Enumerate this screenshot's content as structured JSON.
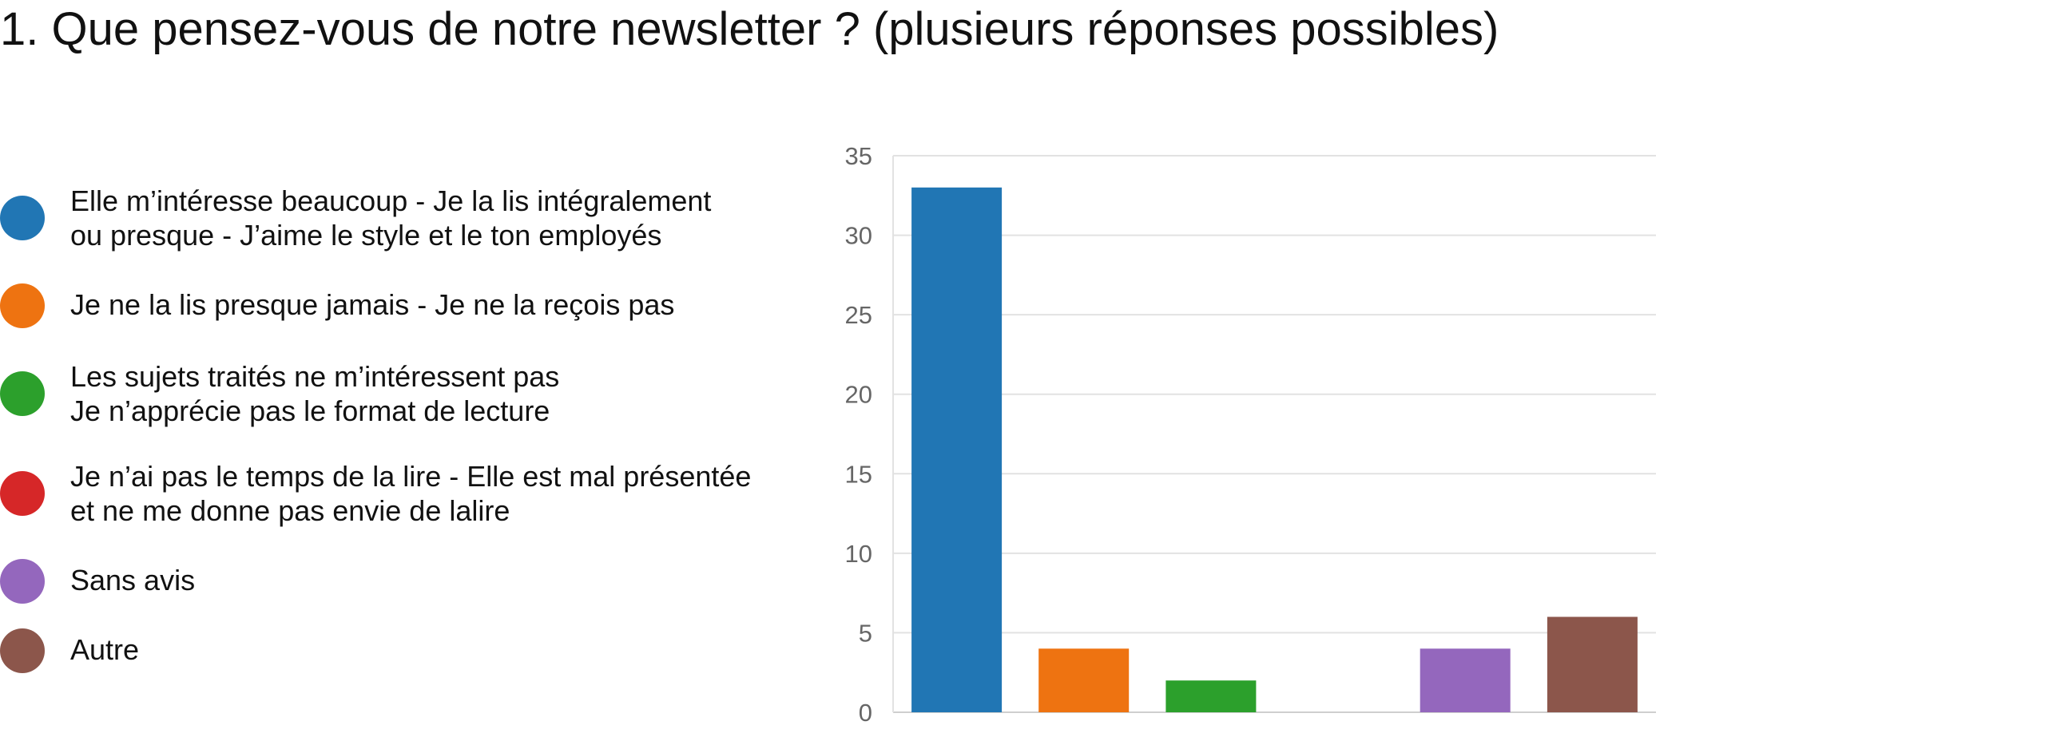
{
  "title": "1. Que pensez-vous de notre newsletter ? (plusieurs réponses possibles)",
  "legend": [
    {
      "label": "Elle m’intéresse beaucoup - Je la lis intégralement\nou presque - J’aime le style et le ton employés",
      "color": "#2176b4"
    },
    {
      "label": "Je ne la lis presque jamais - Je ne la reçois pas",
      "color": "#ee7311"
    },
    {
      "label": "Les sujets traités ne m’intéressent pas\nJe n’apprécie pas le format de lecture",
      "color": "#2ca02c"
    },
    {
      "label": "Je n’ai pas le temps de la lire - Elle est mal présentée\net ne me donne pas envie de lalire",
      "color": "#d62728"
    },
    {
      "label": "Sans avis",
      "color": "#9467bd"
    },
    {
      "label": "Autre",
      "color": "#8c564b"
    }
  ],
  "chart_data": {
    "type": "bar",
    "categories": [
      "Elle m’intéresse beaucoup - Je la lis intégralement ou presque - J’aime le style et le ton employés",
      "Je ne la lis presque jamais - Je ne la reçois pas",
      "Les sujets traités ne m’intéressent pas Je n’apprécie pas le format de lecture",
      "Je n’ai pas le temps de la lire - Elle est mal présentée et ne me donne pas envie de lalire",
      "Sans avis",
      "Autre"
    ],
    "values": [
      33,
      4,
      2,
      0,
      4,
      6
    ],
    "colors": [
      "#2176b4",
      "#ee7311",
      "#2ca02c",
      "#d62728",
      "#9467bd",
      "#8c564b"
    ],
    "ylim": [
      0,
      35
    ],
    "yticks": [
      0,
      5,
      10,
      15,
      20,
      25,
      30,
      35
    ],
    "xlabel": "",
    "ylabel": "",
    "grid": true,
    "legend_position": "left"
  }
}
